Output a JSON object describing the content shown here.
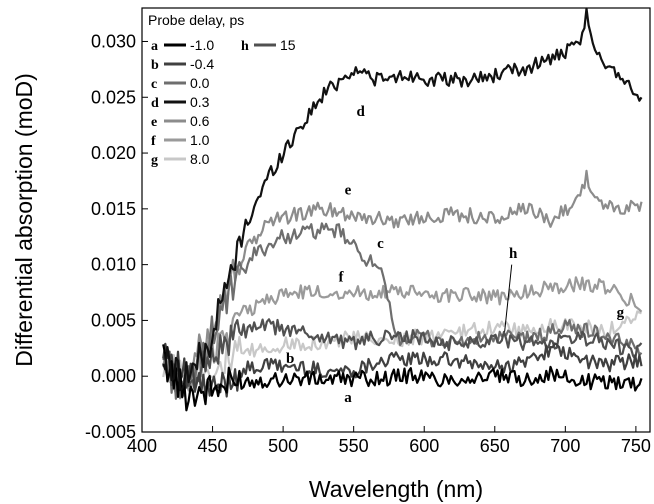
{
  "chart_data": {
    "type": "line",
    "xlabel": "Wavelength (nm)",
    "ylabel": "Differential absorption (moD)",
    "xlim": [
      400,
      760
    ],
    "ylim": [
      -0.005,
      0.033
    ],
    "xticks": [
      400,
      450,
      500,
      550,
      600,
      650,
      700,
      750
    ],
    "xtick_labels": [
      "400",
      "450",
      "500",
      "550",
      "600",
      "650",
      "700",
      "750"
    ],
    "yticks": [
      -0.005,
      0.0,
      0.005,
      0.01,
      0.015,
      0.02,
      0.025,
      0.03
    ],
    "ytick_labels": [
      "-0.005",
      "0.000",
      "0.005",
      "0.010",
      "0.015",
      "0.020",
      "0.025",
      "0.030"
    ],
    "legend": {
      "title": "Probe delay, ps",
      "placement": "top-left",
      "entries": [
        {
          "letter": "a",
          "value": "-1.0"
        },
        {
          "letter": "b",
          "value": "-0.4"
        },
        {
          "letter": "c",
          "value": "0.0"
        },
        {
          "letter": "d",
          "value": "0.3"
        },
        {
          "letter": "e",
          "value": "0.6"
        },
        {
          "letter": "f",
          "value": "1.0"
        },
        {
          "letter": "g",
          "value": "8.0"
        },
        {
          "letter": "h",
          "value": "15"
        }
      ]
    },
    "series": [
      {
        "name": "a",
        "value": "-1.0",
        "color": "#000000",
        "x": [
          415,
          430,
          450,
          470,
          490,
          510,
          530,
          550,
          570,
          590,
          610,
          630,
          650,
          670,
          690,
          710,
          730,
          750,
          755
        ],
        "y": [
          0.0015,
          -0.0015,
          -0.0012,
          -0.0005,
          -0.0003,
          -0.0002,
          -0.0003,
          -0.0002,
          -0.0002,
          0.0001,
          -0.0003,
          -0.0002,
          0.0,
          -0.0003,
          0.0002,
          -0.0005,
          -0.0005,
          -0.0006,
          -0.0003
        ]
      },
      {
        "name": "b",
        "value": "-0.4",
        "color": "#404040",
        "x": [
          415,
          430,
          450,
          470,
          490,
          510,
          530,
          550,
          570,
          590,
          610,
          630,
          650,
          670,
          690,
          710,
          730,
          750,
          755
        ],
        "y": [
          0.003,
          0.0,
          -0.0015,
          0.0005,
          0.001,
          0.0008,
          0.0005,
          0.0005,
          0.0015,
          0.0015,
          0.0015,
          0.0012,
          0.0008,
          0.0012,
          0.0025,
          0.0015,
          0.001,
          0.0015,
          0.0012
        ]
      },
      {
        "name": "c",
        "value": "0.0",
        "color": "#6e6e6e",
        "x": [
          415,
          430,
          450,
          465,
          480,
          500,
          520,
          540,
          550,
          560,
          570,
          580,
          600,
          620,
          640,
          660,
          680,
          700,
          720,
          740,
          755
        ],
        "y": [
          0.001,
          -0.0015,
          0.004,
          0.008,
          0.011,
          0.0125,
          0.013,
          0.013,
          0.0115,
          0.0105,
          0.009,
          0.0035,
          0.0035,
          0.003,
          0.0033,
          0.0035,
          0.0035,
          0.0045,
          0.004,
          0.003,
          0.0025
        ]
      },
      {
        "name": "d",
        "value": "0.3",
        "color": "#111111",
        "x": [
          415,
          430,
          445,
          460,
          475,
          490,
          510,
          530,
          550,
          570,
          590,
          610,
          630,
          650,
          670,
          690,
          700,
          710,
          715,
          720,
          740,
          755
        ],
        "y": [
          0.0015,
          0.0,
          0.002,
          0.008,
          0.014,
          0.018,
          0.022,
          0.0255,
          0.0275,
          0.0265,
          0.027,
          0.0265,
          0.0265,
          0.027,
          0.0275,
          0.0285,
          0.029,
          0.0295,
          0.0325,
          0.029,
          0.027,
          0.0245
        ]
      },
      {
        "name": "e",
        "value": "0.6",
        "color": "#8c8c8c",
        "x": [
          415,
          430,
          450,
          470,
          490,
          510,
          530,
          550,
          570,
          590,
          610,
          630,
          650,
          670,
          690,
          710,
          715,
          720,
          740,
          750,
          755
        ],
        "y": [
          0.001,
          -0.001,
          0.005,
          0.0105,
          0.014,
          0.0145,
          0.015,
          0.0145,
          0.014,
          0.014,
          0.0145,
          0.0145,
          0.014,
          0.015,
          0.014,
          0.016,
          0.018,
          0.016,
          0.0145,
          0.016,
          0.015
        ]
      },
      {
        "name": "f",
        "value": "1.0",
        "color": "#9a9a9a",
        "x": [
          415,
          430,
          450,
          470,
          490,
          510,
          530,
          550,
          570,
          590,
          610,
          630,
          650,
          670,
          690,
          710,
          730,
          750,
          755
        ],
        "y": [
          0.0005,
          -0.001,
          0.0025,
          0.0055,
          0.007,
          0.0075,
          0.0075,
          0.0075,
          0.0075,
          0.0075,
          0.0072,
          0.0075,
          0.007,
          0.0075,
          0.008,
          0.0082,
          0.008,
          0.0065,
          0.0058
        ]
      },
      {
        "name": "g",
        "value": "8.0",
        "color": "#c8c8c8",
        "x": [
          415,
          430,
          450,
          470,
          490,
          510,
          530,
          550,
          570,
          590,
          610,
          630,
          650,
          670,
          690,
          710,
          730,
          750,
          755
        ],
        "y": [
          0.001,
          0.0,
          0.001,
          0.002,
          0.0025,
          0.003,
          0.003,
          0.0035,
          0.003,
          0.0035,
          0.0035,
          0.004,
          0.0045,
          0.004,
          0.0045,
          0.0045,
          0.004,
          0.0055,
          0.005
        ]
      },
      {
        "name": "h",
        "value": "15",
        "color": "#505050",
        "x": [
          415,
          430,
          450,
          470,
          490,
          510,
          530,
          550,
          570,
          590,
          610,
          630,
          650,
          670,
          690,
          710,
          730,
          750,
          755
        ],
        "y": [
          0.002,
          -0.001,
          0.002,
          0.004,
          0.0045,
          0.004,
          0.0035,
          0.003,
          0.0035,
          0.0035,
          0.003,
          0.003,
          0.0035,
          0.003,
          0.003,
          0.0035,
          0.003,
          0.002,
          0.0025
        ]
      }
    ],
    "annotations": [
      {
        "text": "a",
        "x": 546,
        "y": -0.0023
      },
      {
        "text": "b",
        "x": 505,
        "y": 0.0012
      },
      {
        "text": "c",
        "x": 569,
        "y": 0.0115
      },
      {
        "text": "d",
        "x": 555,
        "y": 0.0233
      },
      {
        "text": "e",
        "x": 546,
        "y": 0.0163
      },
      {
        "text": "f",
        "x": 541,
        "y": 0.0085
      },
      {
        "text": "g",
        "x": 739,
        "y": 0.0053
      },
      {
        "text": "h",
        "x": 663,
        "y": 0.0106
      }
    ]
  }
}
